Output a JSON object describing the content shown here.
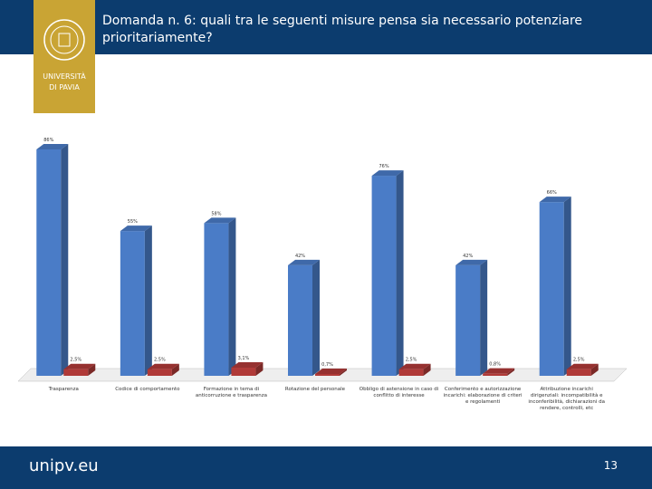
{
  "header": {
    "title": "Domanda n. 6: quali tra le seguenti misure pensa sia necessario potenziare prioritariamente?",
    "logo_lines": [
      "UNIVERSITÀ",
      "DI PAVIA"
    ]
  },
  "footer": {
    "site": "unipv.eu",
    "page": "13"
  },
  "chart_data": {
    "type": "bar3d",
    "categories": [
      "Trasparenza",
      "Codice di comportamento",
      "Formazione in tema di anticorruzione e trasparenza",
      "Rotazione del personale",
      "Obbligo di astensione in caso di conflitto di interesse",
      "Conferimento e autorizzazione incarichi: elaborazione di criteri e regolamenti",
      "Attribuzione incarichi dirigenziali: incompatibilità e inconferibilità, dichiarazioni da rendere, controlli, etc"
    ],
    "series": [
      {
        "color": "#4a7cc7",
        "values": [
          86,
          55,
          58,
          42,
          76,
          42,
          66
        ],
        "value_labels": [
          "86%",
          "55%",
          "58%",
          "42%",
          "76%",
          "42%",
          "66%"
        ]
      },
      {
        "color": "#b03a38",
        "values": [
          2.5,
          2.5,
          3.1,
          0.7,
          2.5,
          0.8,
          2.5
        ],
        "value_labels": [
          "2,5%",
          "2,5%",
          "3,1%",
          "0,7%",
          "2,5%",
          "0,8%",
          "2,5%"
        ]
      }
    ]
  }
}
